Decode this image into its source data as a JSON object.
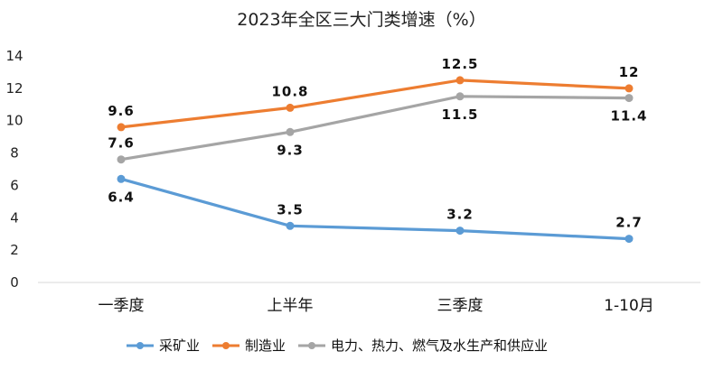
{
  "chart_data": {
    "type": "line",
    "title": "2023年全区三大门类增速（%）",
    "categories": [
      "一季度",
      "上半年",
      "三季度",
      "1-10月"
    ],
    "ylim": [
      0,
      14
    ],
    "yticks": [
      0,
      2,
      4,
      6,
      8,
      10,
      12,
      14
    ],
    "grid": false,
    "legend_position": "bottom",
    "series": [
      {
        "name": "采矿业",
        "color": "#5B9BD5",
        "values": [
          6.4,
          3.5,
          3.2,
          2.7
        ],
        "labels": [
          "6.4",
          "3.5",
          "3.2",
          "2.7"
        ],
        "label_pos": [
          "below",
          "above",
          "above",
          "above"
        ]
      },
      {
        "name": "制造业",
        "color": "#ED7D31",
        "values": [
          9.6,
          10.8,
          12.5,
          12
        ],
        "labels": [
          "9.6",
          "10.8",
          "12.5",
          "12"
        ],
        "label_pos": [
          "above",
          "above",
          "above",
          "above"
        ]
      },
      {
        "name": "电力、热力、燃气及水生产和供应业",
        "color": "#A5A5A5",
        "values": [
          7.6,
          9.3,
          11.5,
          11.4
        ],
        "labels": [
          "7.6",
          "9.3",
          "11.5",
          "11.4"
        ],
        "label_pos": [
          "above",
          "below",
          "below",
          "below"
        ]
      }
    ]
  }
}
